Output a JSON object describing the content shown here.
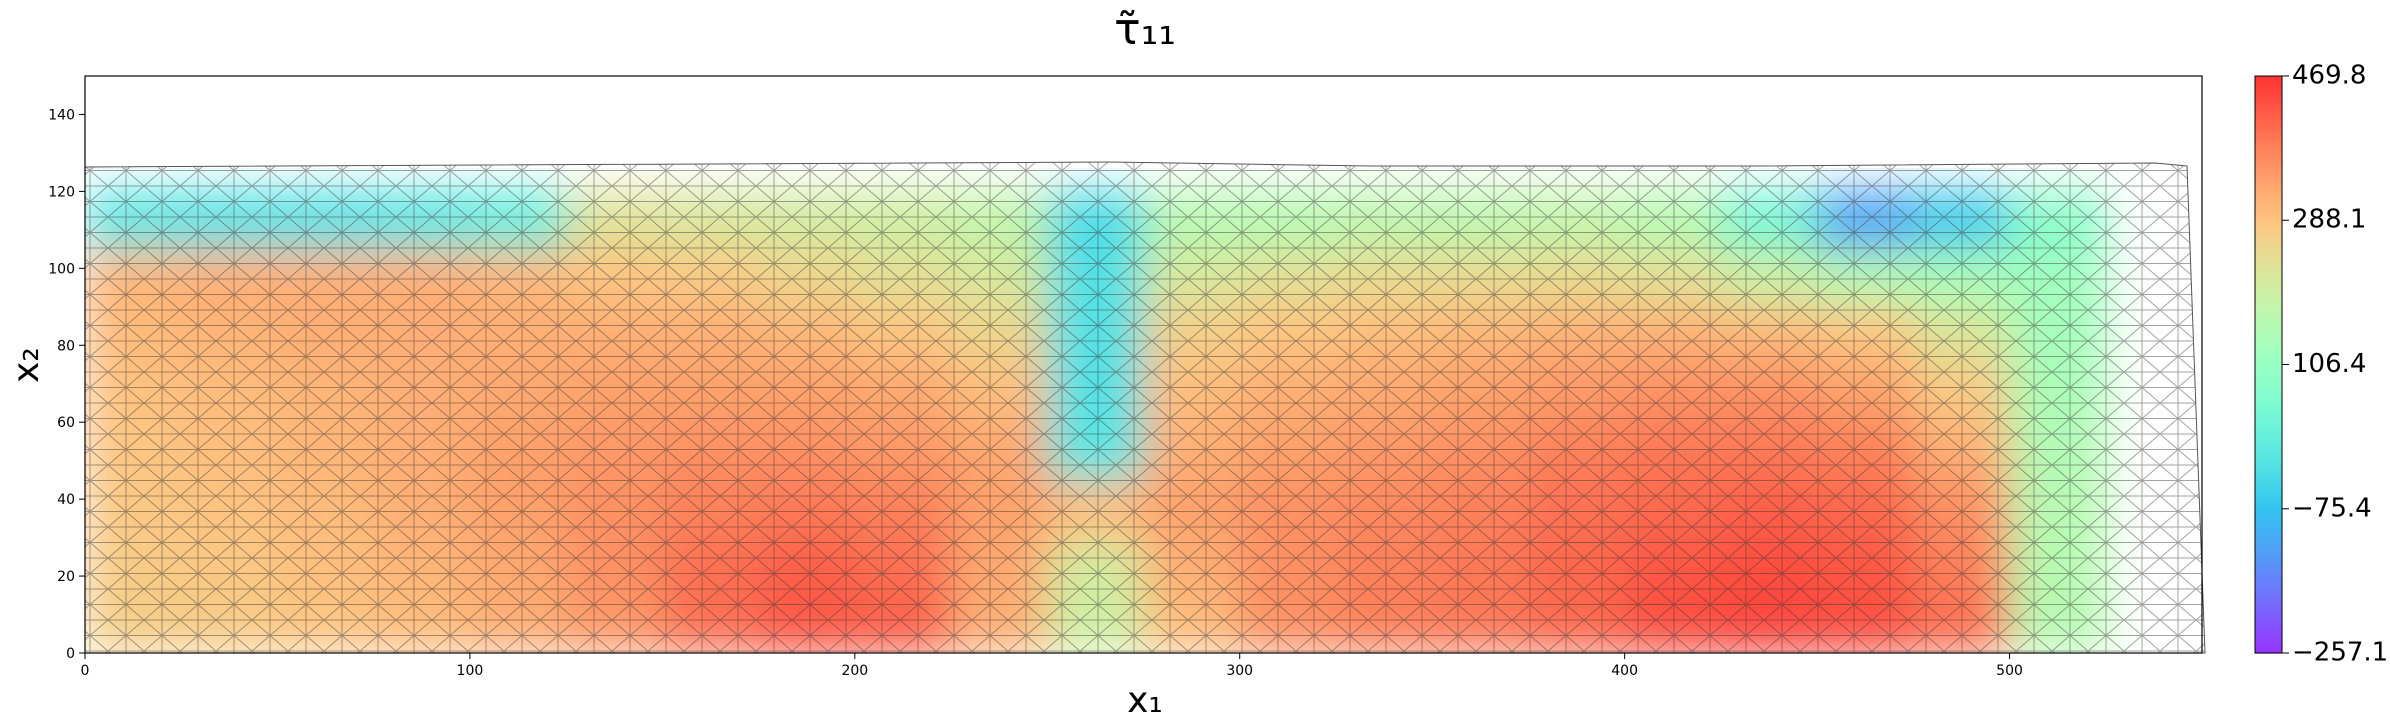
{
  "chart_data": {
    "type": "contour",
    "title": "τ̃₁₁",
    "xlabel": "x₁",
    "ylabel": "x₂",
    "xlim": [
      0,
      550
    ],
    "ylim": [
      0,
      150
    ],
    "xticks": [
      0,
      100,
      200,
      300,
      400,
      500
    ],
    "yticks": [
      0,
      20,
      40,
      60,
      80,
      100,
      120,
      140
    ],
    "cmap": "rainbow",
    "alpha": 0.8,
    "clim": [
      -257.1,
      469.8
    ],
    "cticks": [
      {
        "value": -257.1,
        "label": "−257.1"
      },
      {
        "value": -75.4,
        "label": "−75.4"
      },
      106.4,
      288.1,
      469.8
    ],
    "x": [
      12.5,
      37.5,
      62.5,
      87.5,
      112.5,
      137.5,
      162.5,
      187.5,
      212.5,
      237.5,
      262.5,
      287.5,
      312.5,
      337.5,
      362.5,
      387.5,
      412.5,
      437.5,
      462.5,
      487.5,
      512.5
    ],
    "y": [
      7.5,
      22.5,
      37.5,
      52.5,
      67.5,
      82.5,
      97.5,
      112.5
    ],
    "z": [
      [
        270,
        275,
        285,
        300,
        320,
        350,
        400,
        430,
        420,
        320,
        200,
        300,
        360,
        380,
        390,
        410,
        440,
        450,
        440,
        400,
        160
      ],
      [
        275,
        280,
        295,
        310,
        330,
        360,
        400,
        420,
        400,
        330,
        210,
        320,
        360,
        380,
        390,
        410,
        430,
        440,
        430,
        380,
        160
      ],
      [
        280,
        290,
        300,
        320,
        340,
        360,
        380,
        390,
        380,
        340,
        300,
        340,
        360,
        370,
        380,
        400,
        410,
        420,
        410,
        360,
        160
      ],
      [
        285,
        295,
        310,
        320,
        340,
        350,
        360,
        360,
        350,
        330,
        -10,
        320,
        340,
        350,
        360,
        380,
        390,
        390,
        380,
        320,
        150
      ],
      [
        290,
        300,
        310,
        320,
        330,
        340,
        340,
        340,
        330,
        300,
        -20,
        300,
        320,
        330,
        340,
        350,
        360,
        360,
        340,
        280,
        140
      ],
      [
        300,
        310,
        320,
        320,
        320,
        320,
        320,
        310,
        290,
        260,
        -20,
        270,
        290,
        300,
        310,
        320,
        320,
        310,
        290,
        230,
        130
      ],
      [
        310,
        320,
        320,
        320,
        310,
        290,
        280,
        260,
        240,
        220,
        -20,
        220,
        240,
        250,
        250,
        250,
        240,
        200,
        160,
        140,
        120
      ],
      [
        -10,
        -20,
        -20,
        -10,
        10,
        230,
        220,
        210,
        200,
        180,
        -30,
        160,
        160,
        170,
        170,
        180,
        160,
        40,
        -120,
        -60,
        80
      ]
    ]
  }
}
